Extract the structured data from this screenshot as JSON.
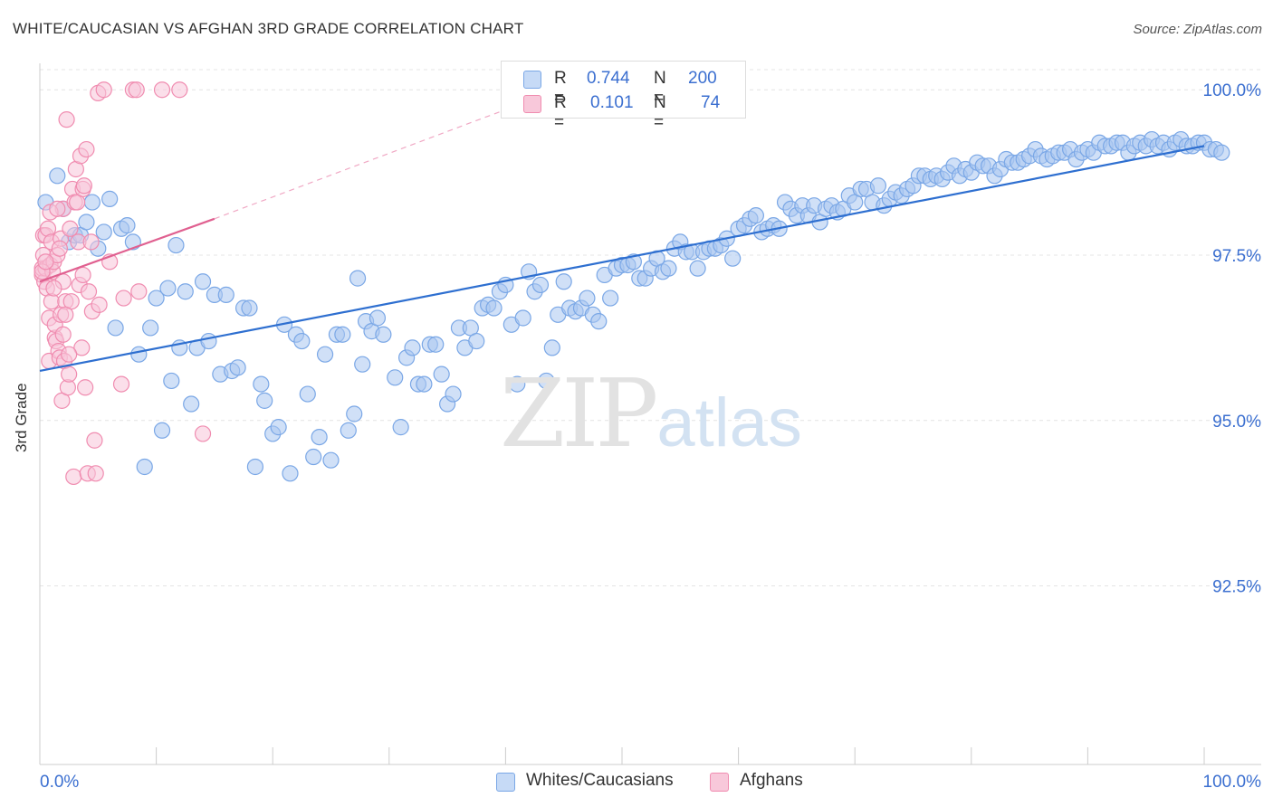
{
  "chart_data": {
    "type": "scatter",
    "title": "WHITE/CAUCASIAN VS AFGHAN 3RD GRADE CORRELATION CHART",
    "source": "Source: ZipAtlas.com",
    "xlabel": "",
    "ylabel": "3rd Grade",
    "xlim": [
      0,
      100
    ],
    "ylim": [
      89.8,
      100.4
    ],
    "x_tick_labels": [
      "0.0%",
      "100.0%"
    ],
    "y_ticks": [
      92.5,
      95.0,
      97.5,
      100.0
    ],
    "y_tick_labels": [
      "92.5%",
      "95.0%",
      "97.5%",
      "100.0%"
    ],
    "grid": true,
    "watermark": [
      "ZIP",
      "atlas"
    ],
    "legend_stats": [
      {
        "r_label": "R =",
        "r_value": "0.744",
        "n_label": "N =",
        "n_value": "200"
      },
      {
        "r_label": "R =",
        "r_value": "0.101",
        "n_label": "N =",
        "n_value": "74"
      }
    ],
    "series": [
      {
        "name": "Whites/Caucasians",
        "color": "#7aa7e6",
        "fill": "#a9c7f0",
        "line_color": "#2e6fd0",
        "trend": {
          "x": [
            0,
            100
          ],
          "y": [
            95.75,
            99.15
          ]
        },
        "points": [
          [
            0.5,
            98.3
          ],
          [
            1.5,
            98.7
          ],
          [
            2,
            98.2
          ],
          [
            2.5,
            97.7
          ],
          [
            3,
            97.8
          ],
          [
            3.5,
            97.8
          ],
          [
            4,
            98.0
          ],
          [
            4.5,
            98.3
          ],
          [
            5,
            97.6
          ],
          [
            5.5,
            97.85
          ],
          [
            6,
            98.35
          ],
          [
            6.5,
            96.4
          ],
          [
            7,
            97.9
          ],
          [
            7.5,
            97.95
          ],
          [
            8,
            97.7
          ],
          [
            8.5,
            96.0
          ],
          [
            9,
            94.3
          ],
          [
            9.5,
            96.4
          ],
          [
            10,
            96.85
          ],
          [
            10.5,
            94.85
          ],
          [
            11,
            97.0
          ],
          [
            11.3,
            95.6
          ],
          [
            11.7,
            97.65
          ],
          [
            12,
            96.1
          ],
          [
            12.5,
            96.95
          ],
          [
            13,
            95.25
          ],
          [
            13.5,
            96.1
          ],
          [
            14,
            97.1
          ],
          [
            14.5,
            96.2
          ],
          [
            15,
            96.9
          ],
          [
            15.5,
            95.7
          ],
          [
            16,
            96.9
          ],
          [
            16.5,
            95.75
          ],
          [
            17,
            95.8
          ],
          [
            17.5,
            96.7
          ],
          [
            18,
            96.7
          ],
          [
            18.5,
            94.3
          ],
          [
            19,
            95.55
          ],
          [
            19.3,
            95.3
          ],
          [
            20,
            94.8
          ],
          [
            20.5,
            94.9
          ],
          [
            21,
            96.45
          ],
          [
            21.5,
            94.2
          ],
          [
            22,
            96.3
          ],
          [
            22.5,
            96.2
          ],
          [
            23,
            95.4
          ],
          [
            23.5,
            94.45
          ],
          [
            24,
            94.75
          ],
          [
            24.5,
            96.0
          ],
          [
            25,
            94.4
          ],
          [
            25.5,
            96.3
          ],
          [
            26,
            96.3
          ],
          [
            26.5,
            94.85
          ],
          [
            27,
            95.1
          ],
          [
            27.3,
            97.15
          ],
          [
            27.7,
            95.85
          ],
          [
            28,
            96.5
          ],
          [
            28.5,
            96.35
          ],
          [
            29,
            96.55
          ],
          [
            29.5,
            96.3
          ],
          [
            30.5,
            95.65
          ],
          [
            31,
            94.9
          ],
          [
            31.5,
            95.95
          ],
          [
            32,
            96.1
          ],
          [
            32.5,
            95.55
          ],
          [
            33,
            95.55
          ],
          [
            33.5,
            96.15
          ],
          [
            34,
            96.15
          ],
          [
            34.5,
            95.7
          ],
          [
            35,
            95.25
          ],
          [
            35.5,
            95.4
          ],
          [
            36,
            96.4
          ],
          [
            36.5,
            96.1
          ],
          [
            37,
            96.4
          ],
          [
            37.5,
            96.2
          ],
          [
            38,
            96.7
          ],
          [
            38.5,
            96.75
          ],
          [
            39,
            96.7
          ],
          [
            39.5,
            96.95
          ],
          [
            40,
            97.05
          ],
          [
            40.5,
            96.45
          ],
          [
            41,
            95.55
          ],
          [
            41.5,
            96.55
          ],
          [
            42,
            97.25
          ],
          [
            42.5,
            96.95
          ],
          [
            43,
            97.05
          ],
          [
            43.5,
            95.6
          ],
          [
            44,
            96.1
          ],
          [
            44.5,
            96.6
          ],
          [
            45,
            97.1
          ],
          [
            45.5,
            96.7
          ],
          [
            46,
            96.65
          ],
          [
            46.5,
            96.7
          ],
          [
            47,
            96.85
          ],
          [
            47.5,
            96.6
          ],
          [
            48,
            96.5
          ],
          [
            48.5,
            97.2
          ],
          [
            49,
            96.85
          ],
          [
            49.5,
            97.3
          ],
          [
            50,
            97.35
          ],
          [
            50.5,
            97.35
          ],
          [
            51,
            97.4
          ],
          [
            51.5,
            97.15
          ],
          [
            52,
            97.15
          ],
          [
            52.5,
            97.3
          ],
          [
            53,
            97.45
          ],
          [
            53.5,
            97.25
          ],
          [
            54,
            97.3
          ],
          [
            54.5,
            97.6
          ],
          [
            55,
            97.7
          ],
          [
            55.5,
            97.55
          ],
          [
            56,
            97.55
          ],
          [
            56.5,
            97.3
          ],
          [
            57,
            97.55
          ],
          [
            57.5,
            97.6
          ],
          [
            58,
            97.6
          ],
          [
            58.5,
            97.65
          ],
          [
            59,
            97.75
          ],
          [
            59.5,
            97.45
          ],
          [
            60,
            97.9
          ],
          [
            60.5,
            97.95
          ],
          [
            61,
            98.05
          ],
          [
            61.5,
            98.1
          ],
          [
            62,
            97.85
          ],
          [
            62.5,
            97.9
          ],
          [
            63,
            97.95
          ],
          [
            63.5,
            97.9
          ],
          [
            64,
            98.3
          ],
          [
            64.5,
            98.2
          ],
          [
            65,
            98.1
          ],
          [
            65.5,
            98.25
          ],
          [
            66,
            98.1
          ],
          [
            66.5,
            98.25
          ],
          [
            67,
            98.0
          ],
          [
            67.5,
            98.2
          ],
          [
            68,
            98.25
          ],
          [
            68.5,
            98.15
          ],
          [
            69,
            98.2
          ],
          [
            69.5,
            98.4
          ],
          [
            70,
            98.3
          ],
          [
            70.5,
            98.5
          ],
          [
            71,
            98.5
          ],
          [
            71.5,
            98.3
          ],
          [
            72,
            98.55
          ],
          [
            72.5,
            98.25
          ],
          [
            73,
            98.35
          ],
          [
            73.5,
            98.45
          ],
          [
            74,
            98.4
          ],
          [
            74.5,
            98.5
          ],
          [
            75,
            98.55
          ],
          [
            75.5,
            98.7
          ],
          [
            76,
            98.7
          ],
          [
            76.5,
            98.65
          ],
          [
            77,
            98.7
          ],
          [
            77.5,
            98.65
          ],
          [
            78,
            98.75
          ],
          [
            78.5,
            98.85
          ],
          [
            79,
            98.7
          ],
          [
            79.5,
            98.8
          ],
          [
            80,
            98.75
          ],
          [
            80.5,
            98.9
          ],
          [
            81,
            98.85
          ],
          [
            81.5,
            98.85
          ],
          [
            82,
            98.7
          ],
          [
            82.5,
            98.8
          ],
          [
            83,
            98.95
          ],
          [
            83.5,
            98.9
          ],
          [
            84,
            98.9
          ],
          [
            84.5,
            98.95
          ],
          [
            85,
            99.0
          ],
          [
            85.5,
            99.1
          ],
          [
            86,
            99.0
          ],
          [
            86.5,
            98.95
          ],
          [
            87,
            99.0
          ],
          [
            87.5,
            99.05
          ],
          [
            88,
            99.05
          ],
          [
            88.5,
            99.1
          ],
          [
            89,
            98.95
          ],
          [
            89.5,
            99.05
          ],
          [
            90,
            99.1
          ],
          [
            90.5,
            99.05
          ],
          [
            91,
            99.2
          ],
          [
            91.5,
            99.15
          ],
          [
            92,
            99.15
          ],
          [
            92.5,
            99.2
          ],
          [
            93,
            99.2
          ],
          [
            93.5,
            99.05
          ],
          [
            94,
            99.15
          ],
          [
            94.5,
            99.2
          ],
          [
            95,
            99.15
          ],
          [
            95.5,
            99.25
          ],
          [
            96,
            99.15
          ],
          [
            96.5,
            99.2
          ],
          [
            97,
            99.1
          ],
          [
            97.5,
            99.2
          ],
          [
            98,
            99.25
          ],
          [
            98.5,
            99.15
          ],
          [
            99,
            99.15
          ],
          [
            99.5,
            99.2
          ],
          [
            100,
            99.2
          ],
          [
            100.5,
            99.1
          ],
          [
            101,
            99.1
          ],
          [
            101.5,
            99.05
          ]
        ]
      },
      {
        "name": "Afghans",
        "color": "#f08cb0",
        "fill": "#f8c4d8",
        "line_color": "#e06090",
        "trend": {
          "x": [
            0,
            15
          ],
          "y": [
            97.1,
            98.05
          ]
        },
        "trend_extension": {
          "x": [
            15,
            40
          ],
          "y": [
            98.05,
            99.7
          ]
        },
        "points": [
          [
            0.2,
            97.2
          ],
          [
            0.2,
            97.3
          ],
          [
            0.3,
            97.8
          ],
          [
            0.3,
            97.5
          ],
          [
            0.4,
            97.1
          ],
          [
            0.5,
            97.8
          ],
          [
            0.5,
            97.3
          ],
          [
            0.6,
            97.0
          ],
          [
            0.7,
            97.9
          ],
          [
            0.8,
            96.55
          ],
          [
            0.8,
            95.9
          ],
          [
            0.9,
            97.35
          ],
          [
            1.0,
            96.8
          ],
          [
            1.0,
            97.7
          ],
          [
            1.1,
            97.25
          ],
          [
            1.2,
            97.4
          ],
          [
            1.3,
            96.25
          ],
          [
            1.3,
            96.45
          ],
          [
            1.4,
            96.2
          ],
          [
            1.5,
            97.5
          ],
          [
            1.6,
            96.05
          ],
          [
            1.7,
            95.95
          ],
          [
            1.8,
            97.75
          ],
          [
            1.8,
            96.6
          ],
          [
            1.9,
            95.3
          ],
          [
            2.0,
            98.2
          ],
          [
            2.0,
            97.1
          ],
          [
            2.1,
            95.9
          ],
          [
            2.2,
            96.8
          ],
          [
            2.3,
            99.55
          ],
          [
            2.4,
            95.5
          ],
          [
            2.5,
            95.7
          ],
          [
            2.6,
            97.9
          ],
          [
            2.7,
            96.8
          ],
          [
            2.8,
            98.5
          ],
          [
            2.9,
            94.15
          ],
          [
            3.0,
            98.3
          ],
          [
            3.1,
            98.8
          ],
          [
            3.2,
            98.3
          ],
          [
            3.3,
            97.7
          ],
          [
            3.4,
            97.05
          ],
          [
            3.5,
            99.0
          ],
          [
            3.6,
            96.1
          ],
          [
            3.7,
            98.5
          ],
          [
            3.8,
            98.55
          ],
          [
            3.9,
            95.5
          ],
          [
            4.0,
            99.1
          ],
          [
            4.1,
            94.2
          ],
          [
            4.2,
            96.95
          ],
          [
            4.4,
            97.7
          ],
          [
            4.5,
            96.65
          ],
          [
            4.7,
            94.7
          ],
          [
            4.8,
            94.2
          ],
          [
            5.0,
            99.95
          ],
          [
            5.1,
            96.75
          ],
          [
            5.5,
            100.0
          ],
          [
            6.0,
            97.4
          ],
          [
            7.0,
            95.55
          ],
          [
            7.2,
            96.85
          ],
          [
            8.0,
            100.0
          ],
          [
            8.3,
            100.0
          ],
          [
            8.5,
            96.95
          ],
          [
            10.5,
            100.0
          ],
          [
            12.0,
            100.0
          ],
          [
            14.0,
            94.8
          ],
          [
            0.2,
            97.25
          ],
          [
            0.5,
            97.4
          ],
          [
            0.9,
            98.15
          ],
          [
            1.5,
            98.2
          ],
          [
            1.7,
            97.6
          ],
          [
            2.2,
            96.6
          ],
          [
            2.5,
            96.0
          ],
          [
            3.7,
            97.2
          ],
          [
            1.2,
            97.0
          ],
          [
            2.0,
            96.3
          ]
        ]
      }
    ]
  }
}
